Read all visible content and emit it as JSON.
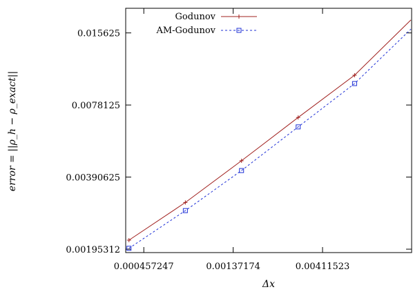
{
  "chart_data": {
    "type": "line",
    "xlabel": "Δx",
    "ylabel": "error = ||ρ_h − ρ_exact||",
    "x_scale": "log",
    "y_scale": "log",
    "xlim": [
      0.000366,
      0.0123
    ],
    "ylim": [
      0.00189,
      0.0198
    ],
    "x_ticks": [
      {
        "value": 0.000457247,
        "label": "0.000457247"
      },
      {
        "value": 0.00137174,
        "label": "0.00137174"
      },
      {
        "value": 0.00411523,
        "label": "0.00411523"
      }
    ],
    "y_ticks": [
      {
        "value": 0.001953125,
        "label": "0.00195312"
      },
      {
        "value": 0.00390625,
        "label": "0.00390625"
      },
      {
        "value": 0.0078125,
        "label": "0.0078125"
      },
      {
        "value": 0.015625,
        "label": "0.015625"
      }
    ],
    "legend_position": "top-left",
    "series": [
      {
        "name": "Godunov",
        "color": "#a0201e",
        "marker": "plus",
        "line": "solid",
        "x": [
          0.000381,
          0.000762,
          0.00152,
          0.00305,
          0.0061,
          0.0122
        ],
        "y": [
          0.00213,
          0.00306,
          0.00457,
          0.00693,
          0.0104,
          0.0177
        ]
      },
      {
        "name": "AM-Godunov",
        "color": "#1d2fd6",
        "marker": "square",
        "line": "dashed",
        "x": [
          0.000381,
          0.000762,
          0.00152,
          0.00305,
          0.0061,
          0.0122
        ],
        "y": [
          0.00197,
          0.00283,
          0.00416,
          0.00633,
          0.0096,
          0.0162
        ]
      }
    ]
  }
}
